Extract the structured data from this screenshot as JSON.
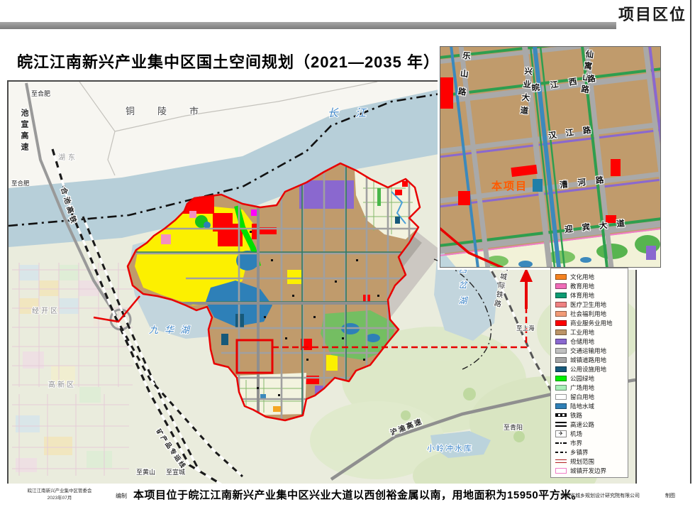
{
  "header": {
    "page_tag": "项目区位"
  },
  "title": "皖江江南新兴产业集中区国土空间规划（2021—2035 年）",
  "map_labels": {
    "to_hefei_top": "至合肥",
    "chixuan_expressway": "池宣高速",
    "hudong": "湖东",
    "to_hefei_left": "至合肥",
    "hechi_highspeed_rail": "合池高铁",
    "tongling_city": "铜陵市",
    "yangtze_river": "长江",
    "jingkai_district": "经开区",
    "jiuhua_lake": "九华湖",
    "gaoxin_district": "高新区",
    "xicha_lake": "西岔湖",
    "ancheng_intercity_rail": "安城际铁路",
    "to_shanghai": "至上海",
    "huyu_expressway": "沪渝高速",
    "xiaolingchong_reservoir": "小岭冲水库",
    "to_qingyang": "至青阳",
    "mineral_rail_line": "矿产品专运线",
    "to_huangshan": "至黄山",
    "to_xuancheng": "至宣城"
  },
  "inset": {
    "roads": {
      "leshan_road": "乐山路",
      "xingye_avenue": "兴业大道",
      "wanjiang_west_road": "皖江西路",
      "xianyushan_road": "仙寓山路",
      "hanjiang_road": "汉江路",
      "caohe_road": "漕河路",
      "yingbin_avenue": "迎宾大道"
    },
    "project_label": "本项目"
  },
  "legend": {
    "items": [
      {
        "label": "文化用地",
        "type": "fill",
        "color": "#F5821F"
      },
      {
        "label": "教育用地",
        "type": "fill",
        "color": "#F06CB8"
      },
      {
        "label": "体育用地",
        "type": "fill",
        "color": "#0E9B72"
      },
      {
        "label": "医疗卫生用地",
        "type": "fill",
        "color": "#EF8181"
      },
      {
        "label": "社会福利用地",
        "type": "fill",
        "color": "#F29B76"
      },
      {
        "label": "商业服务业用地",
        "type": "fill",
        "color": "#FE0000"
      },
      {
        "label": "工业用地",
        "type": "fill",
        "color": "#BC9467"
      },
      {
        "label": "仓储用地",
        "type": "fill",
        "color": "#8A68CF"
      },
      {
        "label": "交通运输用地",
        "type": "fill",
        "color": "#C0C0C0"
      },
      {
        "label": "城镇道路用地",
        "type": "fill",
        "color": "#A6A6A6"
      },
      {
        "label": "公用设施用地",
        "type": "fill",
        "color": "#16597A"
      },
      {
        "label": "公园绿地",
        "type": "fill",
        "color": "#00F000"
      },
      {
        "label": "广场用地",
        "type": "fill",
        "color": "#A8EFB8"
      },
      {
        "label": "留白用地",
        "type": "fill",
        "color": "#FFFFFF"
      },
      {
        "label": "陆地水域",
        "type": "fill",
        "color": "#2F80B6"
      },
      {
        "label": "铁路",
        "type": "railway"
      },
      {
        "label": "高速公路",
        "type": "highway"
      },
      {
        "label": "机场",
        "type": "airport",
        "glyph": "✈"
      },
      {
        "label": "市界",
        "type": "dashdot"
      },
      {
        "label": "乡镇界",
        "type": "dash"
      },
      {
        "label": "规划范围",
        "type": "redline"
      },
      {
        "label": "城镇开发边界",
        "type": "pinkbox"
      }
    ]
  },
  "caption": {
    "agency": "皖江江南新兴产业集中区管委会",
    "date": "2023年07月",
    "prepared_label": "编制",
    "text": "本项目位于皖江江南新兴产业集中区兴业大道以西创裕金属以南，用地面积为15950平方米。",
    "designer": "安徽省城乡规划设计研究院有限公司",
    "drawn_label": "制图"
  }
}
